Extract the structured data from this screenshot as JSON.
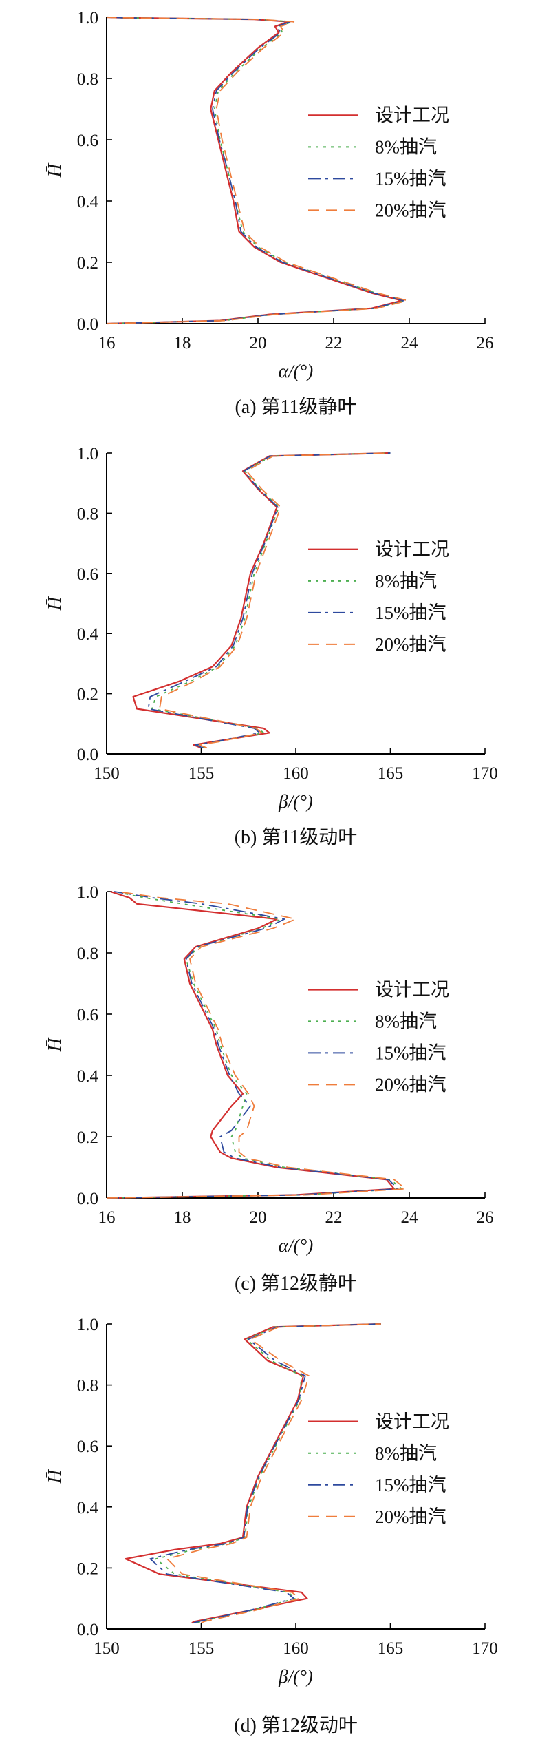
{
  "colors": {
    "design": "#d32f2f",
    "bleed8": "#4caf50",
    "bleed15": "#2e4a9e",
    "bleed20": "#ef7d3c"
  },
  "chart_data": [
    {
      "type": "line",
      "caption": "(a) 第11级静叶",
      "xlabel": "α/(°)",
      "ylabel": "H̄",
      "xlim": [
        16,
        26
      ],
      "ylim": [
        0,
        1
      ],
      "xticks": [
        16,
        18,
        20,
        22,
        24,
        26
      ],
      "yticks": [
        0.0,
        0.2,
        0.4,
        0.6,
        0.8,
        1.0
      ],
      "legend_position": "right-middle",
      "series": [
        {
          "name": "设计工况",
          "style": "solid",
          "x": [
            16,
            19.0,
            20.3,
            23.0,
            23.8,
            23.0,
            21.8,
            20.6,
            19.9,
            19.5,
            19.35,
            19.15,
            18.95,
            18.75,
            18.85,
            19.3,
            20.0,
            20.55,
            20.45,
            20.8,
            19.9,
            16.5,
            16.0
          ],
          "y": [
            0.0,
            0.01,
            0.03,
            0.05,
            0.075,
            0.1,
            0.15,
            0.2,
            0.25,
            0.3,
            0.4,
            0.5,
            0.6,
            0.7,
            0.76,
            0.82,
            0.9,
            0.95,
            0.97,
            0.985,
            0.993,
            0.998,
            1.0
          ]
        },
        {
          "name": "8%抽汽",
          "style": "dotted",
          "x": [
            16,
            19.1,
            20.4,
            23.1,
            23.9,
            23.1,
            21.9,
            20.7,
            20.0,
            19.6,
            19.4,
            19.2,
            19.0,
            18.85,
            18.95,
            19.4,
            20.1,
            20.65,
            20.55,
            20.9,
            20.0,
            16.5,
            16.0
          ],
          "y": [
            0.0,
            0.01,
            0.03,
            0.05,
            0.075,
            0.1,
            0.15,
            0.2,
            0.25,
            0.3,
            0.4,
            0.5,
            0.6,
            0.7,
            0.76,
            0.82,
            0.9,
            0.95,
            0.97,
            0.985,
            0.993,
            0.998,
            1.0
          ]
        },
        {
          "name": "15%抽汽",
          "style": "dashdot",
          "x": [
            16,
            19.05,
            20.35,
            23.05,
            23.85,
            23.05,
            21.85,
            20.65,
            19.95,
            19.55,
            19.4,
            19.2,
            18.98,
            18.8,
            18.9,
            19.35,
            20.05,
            20.6,
            20.5,
            20.85,
            19.95,
            16.5,
            16.0
          ],
          "y": [
            0.0,
            0.01,
            0.03,
            0.05,
            0.075,
            0.1,
            0.15,
            0.2,
            0.25,
            0.3,
            0.4,
            0.5,
            0.6,
            0.7,
            0.76,
            0.82,
            0.9,
            0.95,
            0.97,
            0.985,
            0.993,
            0.998,
            1.0
          ]
        },
        {
          "name": "20%抽汽",
          "style": "dashed",
          "x": [
            16,
            19.15,
            20.45,
            23.15,
            23.95,
            23.15,
            21.95,
            20.75,
            20.05,
            19.65,
            19.45,
            19.25,
            19.05,
            18.9,
            19.0,
            19.45,
            20.15,
            20.7,
            20.6,
            20.95,
            20.05,
            16.5,
            16.0
          ],
          "y": [
            0.0,
            0.01,
            0.03,
            0.05,
            0.075,
            0.1,
            0.15,
            0.2,
            0.25,
            0.3,
            0.4,
            0.5,
            0.6,
            0.7,
            0.76,
            0.82,
            0.9,
            0.95,
            0.97,
            0.985,
            0.993,
            0.998,
            1.0
          ]
        }
      ]
    },
    {
      "type": "line",
      "caption": "(b) 第11级动叶",
      "xlabel": "β/(°)",
      "ylabel": "H̄",
      "xlim": [
        150,
        170
      ],
      "ylim": [
        0,
        1
      ],
      "xticks": [
        150,
        155,
        160,
        165,
        170
      ],
      "yticks": [
        0.0,
        0.2,
        0.4,
        0.6,
        0.8,
        1.0
      ],
      "legend_position": "right-middle",
      "series": [
        {
          "name": "设计工况",
          "style": "solid",
          "x": [
            155.0,
            154.6,
            155.6,
            158.6,
            158.3,
            151.6,
            151.4,
            153.8,
            155.6,
            156.6,
            157.1,
            157.6,
            158.3,
            159.0,
            158.0,
            157.2,
            158.6,
            165.0
          ],
          "y": [
            0.02,
            0.03,
            0.04,
            0.07,
            0.085,
            0.15,
            0.19,
            0.24,
            0.29,
            0.36,
            0.45,
            0.6,
            0.7,
            0.82,
            0.88,
            0.94,
            0.99,
            1.0
          ]
        },
        {
          "name": "8%抽汽",
          "style": "dotted",
          "x": [
            155.2,
            154.8,
            155.8,
            158.3,
            158.0,
            152.4,
            152.6,
            154.4,
            155.9,
            156.8,
            157.3,
            157.8,
            158.4,
            159.1,
            158.1,
            157.3,
            158.7,
            165.0
          ],
          "y": [
            0.02,
            0.03,
            0.04,
            0.07,
            0.085,
            0.15,
            0.19,
            0.24,
            0.29,
            0.36,
            0.45,
            0.6,
            0.7,
            0.82,
            0.88,
            0.94,
            0.99,
            1.0
          ]
        },
        {
          "name": "15%抽汽",
          "style": "dashdot",
          "x": [
            155.1,
            154.7,
            155.7,
            158.1,
            157.8,
            152.2,
            152.3,
            154.1,
            155.8,
            156.7,
            157.2,
            157.7,
            158.35,
            159.05,
            158.05,
            157.25,
            158.65,
            165.0
          ],
          "y": [
            0.02,
            0.03,
            0.04,
            0.07,
            0.085,
            0.15,
            0.19,
            0.24,
            0.29,
            0.36,
            0.45,
            0.6,
            0.7,
            0.82,
            0.88,
            0.94,
            0.99,
            1.0
          ]
        },
        {
          "name": "20%抽汽",
          "style": "dashed",
          "x": [
            155.3,
            154.9,
            155.9,
            158.2,
            157.9,
            152.8,
            152.9,
            154.6,
            156.0,
            156.9,
            157.4,
            157.9,
            158.5,
            159.2,
            158.2,
            157.4,
            158.8,
            165.0
          ],
          "y": [
            0.02,
            0.03,
            0.04,
            0.07,
            0.085,
            0.15,
            0.19,
            0.24,
            0.29,
            0.36,
            0.45,
            0.6,
            0.7,
            0.82,
            0.88,
            0.94,
            0.99,
            1.0
          ]
        }
      ]
    },
    {
      "type": "line",
      "caption": "(c) 第12级静叶",
      "xlabel": "α/(°)",
      "ylabel": "H̄",
      "xlim": [
        16,
        26
      ],
      "ylim": [
        0,
        1
      ],
      "xticks": [
        16,
        18,
        20,
        22,
        24,
        26
      ],
      "yticks": [
        0.0,
        0.2,
        0.4,
        0.6,
        0.8,
        1.0
      ],
      "legend_position": "right-middle",
      "series": [
        {
          "name": "设计工况",
          "style": "solid",
          "x": [
            16,
            21.0,
            23.6,
            23.4,
            20.5,
            19.3,
            19.0,
            18.75,
            18.8,
            19.3,
            19.6,
            19.2,
            18.9,
            18.8,
            18.2,
            18.05,
            18.35,
            20.0,
            20.5,
            16.8,
            16.6,
            16.1
          ],
          "y": [
            0.0,
            0.01,
            0.03,
            0.06,
            0.1,
            0.13,
            0.15,
            0.2,
            0.22,
            0.3,
            0.34,
            0.4,
            0.5,
            0.55,
            0.7,
            0.78,
            0.82,
            0.88,
            0.91,
            0.96,
            0.98,
            1.0
          ]
        },
        {
          "name": "8%抽汽",
          "style": "dotted",
          "x": [
            16,
            21.2,
            23.8,
            23.5,
            20.7,
            19.6,
            19.4,
            19.3,
            19.4,
            19.6,
            19.7,
            19.3,
            19.0,
            18.9,
            18.3,
            18.1,
            18.45,
            20.1,
            20.6,
            18.0,
            17.0,
            16.2
          ],
          "y": [
            0.0,
            0.01,
            0.03,
            0.06,
            0.1,
            0.13,
            0.15,
            0.2,
            0.22,
            0.3,
            0.34,
            0.4,
            0.5,
            0.55,
            0.7,
            0.78,
            0.82,
            0.88,
            0.91,
            0.96,
            0.98,
            1.0
          ]
        },
        {
          "name": "15%抽汽",
          "style": "dashdot",
          "x": [
            16,
            21.1,
            23.7,
            23.45,
            20.6,
            19.4,
            19.1,
            19.0,
            19.3,
            19.8,
            19.5,
            19.25,
            18.95,
            18.85,
            18.25,
            18.1,
            18.4,
            20.2,
            20.7,
            18.5,
            17.2,
            16.2
          ],
          "y": [
            0.0,
            0.01,
            0.03,
            0.06,
            0.1,
            0.13,
            0.15,
            0.2,
            0.22,
            0.3,
            0.34,
            0.4,
            0.5,
            0.55,
            0.7,
            0.78,
            0.82,
            0.88,
            0.91,
            0.96,
            0.98,
            1.0
          ]
        },
        {
          "name": "20%抽汽",
          "style": "dashed",
          "x": [
            16,
            21.3,
            23.9,
            23.6,
            20.8,
            19.7,
            19.5,
            19.5,
            19.7,
            19.9,
            19.75,
            19.4,
            19.05,
            18.95,
            18.35,
            18.2,
            18.5,
            20.4,
            21.0,
            19.2,
            17.4,
            16.3
          ],
          "y": [
            0.0,
            0.01,
            0.03,
            0.06,
            0.1,
            0.13,
            0.15,
            0.2,
            0.22,
            0.3,
            0.34,
            0.4,
            0.5,
            0.55,
            0.7,
            0.78,
            0.82,
            0.88,
            0.91,
            0.96,
            0.98,
            1.0
          ]
        }
      ]
    },
    {
      "type": "line",
      "caption": "(d) 第12级动叶",
      "xlabel": "β/(°)",
      "ylabel": "H̄",
      "xlim": [
        150,
        170
      ],
      "ylim": [
        0,
        1
      ],
      "xticks": [
        150,
        155,
        160,
        165,
        170
      ],
      "yticks": [
        0.0,
        0.2,
        0.4,
        0.6,
        0.8,
        1.0
      ],
      "legend_position": "right-middle",
      "series": [
        {
          "name": "设计工况",
          "style": "solid",
          "x": [
            154.5,
            154.7,
            157.5,
            160.6,
            160.3,
            152.8,
            151.0,
            153.6,
            156.0,
            157.2,
            157.4,
            158.0,
            159.0,
            160.1,
            160.4,
            158.5,
            157.3,
            158.8,
            164.5
          ],
          "y": [
            0.02,
            0.025,
            0.06,
            0.1,
            0.12,
            0.18,
            0.23,
            0.26,
            0.28,
            0.3,
            0.4,
            0.5,
            0.62,
            0.75,
            0.83,
            0.88,
            0.95,
            0.99,
            1.0
          ]
        },
        {
          "name": "8%抽汽",
          "style": "dotted",
          "x": [
            154.8,
            155.0,
            157.6,
            160.0,
            159.6,
            153.6,
            152.6,
            154.6,
            156.4,
            157.3,
            157.5,
            158.1,
            159.1,
            160.2,
            160.3,
            158.7,
            157.4,
            158.9,
            164.5
          ],
          "y": [
            0.02,
            0.025,
            0.06,
            0.1,
            0.12,
            0.18,
            0.23,
            0.26,
            0.28,
            0.3,
            0.4,
            0.5,
            0.62,
            0.75,
            0.83,
            0.88,
            0.95,
            0.99,
            1.0
          ]
        },
        {
          "name": "15%抽汽",
          "style": "dashdot",
          "x": [
            154.6,
            154.9,
            157.5,
            159.9,
            159.5,
            153.2,
            152.3,
            154.3,
            156.3,
            157.25,
            157.45,
            158.05,
            159.05,
            160.15,
            160.5,
            158.9,
            157.5,
            159.0,
            164.5
          ],
          "y": [
            0.02,
            0.025,
            0.06,
            0.1,
            0.12,
            0.18,
            0.23,
            0.26,
            0.28,
            0.3,
            0.4,
            0.5,
            0.62,
            0.75,
            0.83,
            0.88,
            0.95,
            0.99,
            1.0
          ]
        },
        {
          "name": "20%抽汽",
          "style": "dashed",
          "x": [
            155.0,
            155.2,
            157.8,
            160.2,
            159.8,
            154.0,
            153.2,
            155.0,
            156.6,
            157.4,
            157.6,
            158.2,
            159.2,
            160.3,
            160.7,
            159.2,
            157.6,
            159.1,
            164.5
          ],
          "y": [
            0.02,
            0.025,
            0.06,
            0.1,
            0.12,
            0.18,
            0.23,
            0.26,
            0.28,
            0.3,
            0.4,
            0.5,
            0.62,
            0.75,
            0.83,
            0.88,
            0.95,
            0.99,
            1.0
          ]
        }
      ]
    }
  ]
}
